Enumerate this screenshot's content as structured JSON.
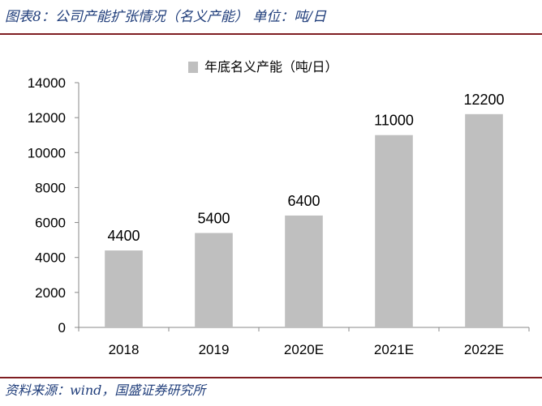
{
  "header": {
    "figure_title": "图表8：公司产能扩张情况（名义产能） 单位：吨/日"
  },
  "footer": {
    "source": "资料来源：wind，国盛证券研究所"
  },
  "colors": {
    "bar": "#bfbfbf",
    "axis": "#888888",
    "title": "#1f3d7a",
    "rule": "#7f1e22"
  },
  "chart_data": {
    "type": "bar",
    "categories": [
      "2018",
      "2019",
      "2020E",
      "2021E",
      "2022E"
    ],
    "series": [
      {
        "name": "年底名义产能（吨/日）",
        "values": [
          4400,
          5400,
          6400,
          11000,
          12200
        ]
      }
    ],
    "y_ticks": [
      "0",
      "2000",
      "4000",
      "6000",
      "8000",
      "10000",
      "12000",
      "14000"
    ],
    "ylim": [
      0,
      14000
    ],
    "data_labels": [
      "4400",
      "5400",
      "6400",
      "11000",
      "12200"
    ],
    "grid": false,
    "legend_position": "top"
  }
}
